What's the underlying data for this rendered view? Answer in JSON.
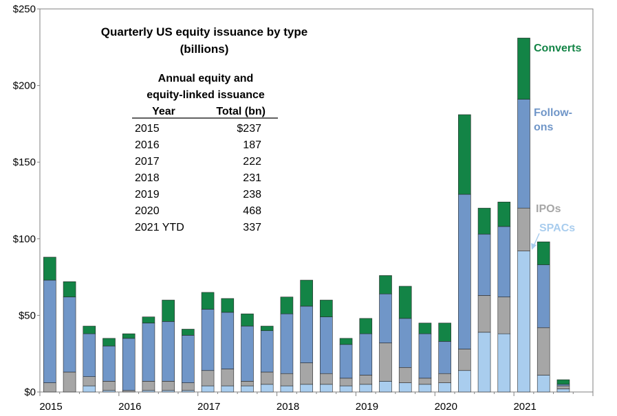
{
  "chart_data": {
    "type": "bar",
    "stacked": true,
    "title": "Quarterly US equity issuance by type",
    "subtitle": "(billions)",
    "ylim": [
      0,
      250
    ],
    "y_ticks": [
      "$0",
      "$50",
      "$100",
      "$150",
      "$200",
      "$250"
    ],
    "y_tick_values": [
      0,
      50,
      100,
      150,
      200,
      250
    ],
    "x_year_labels": [
      "2015",
      "2016",
      "2017",
      "2018",
      "2019",
      "2020",
      "2021"
    ],
    "quarters_per_year": 4,
    "categories": [
      "2015 Q1",
      "2015 Q2",
      "2015 Q3",
      "2015 Q4",
      "2016 Q1",
      "2016 Q2",
      "2016 Q3",
      "2016 Q4",
      "2017 Q1",
      "2017 Q2",
      "2017 Q3",
      "2017 Q4",
      "2018 Q1",
      "2018 Q2",
      "2018 Q3",
      "2018 Q4",
      "2019 Q1",
      "2019 Q2",
      "2019 Q3",
      "2019 Q4",
      "2020 Q1",
      "2020 Q2",
      "2020 Q3",
      "2020 Q4",
      "2021 Q1",
      "2021 Q2",
      "2021 Q3"
    ],
    "series": [
      {
        "name": "SPACs",
        "color": "#a9cdee",
        "values": [
          0,
          0,
          4,
          1,
          0,
          1,
          1,
          1,
          4,
          4,
          4,
          5,
          4,
          5,
          5,
          4,
          5,
          7,
          6,
          5,
          6,
          14,
          39,
          38,
          92,
          11,
          2
        ]
      },
      {
        "name": "IPOs",
        "color": "#a6a6a6",
        "values": [
          6,
          13,
          6,
          6,
          1,
          6,
          6,
          5,
          10,
          11,
          3,
          8,
          8,
          14,
          7,
          5,
          6,
          25,
          10,
          4,
          6,
          14,
          24,
          24,
          28,
          31,
          2
        ]
      },
      {
        "name": "Follow-ons",
        "color": "#7096c8",
        "values": [
          67,
          49,
          28,
          23,
          34,
          38,
          39,
          31,
          40,
          37,
          36,
          27,
          39,
          37,
          37,
          22,
          27,
          32,
          32,
          29,
          21,
          101,
          40,
          46,
          71,
          41,
          1
        ]
      },
      {
        "name": "Converts",
        "color": "#138446",
        "values": [
          15,
          10,
          5,
          5,
          3,
          4,
          14,
          4,
          11,
          9,
          8,
          3,
          11,
          17,
          11,
          4,
          10,
          12,
          21,
          7,
          12,
          52,
          17,
          16,
          40,
          15,
          3
        ]
      }
    ],
    "legend_labels": [
      {
        "series": "Converts",
        "lines": [
          "Converts"
        ],
        "color": "#138446"
      },
      {
        "series": "Follow-ons",
        "lines": [
          "Follow-",
          "ons"
        ],
        "color": "#7096c8"
      },
      {
        "series": "IPOs",
        "lines": [
          "IPOs"
        ],
        "color": "#a6a6a6"
      },
      {
        "series": "SPACs",
        "lines": [
          "SPACs"
        ],
        "color": "#a9cdee"
      }
    ],
    "inset_table": {
      "title_lines": [
        "Annual equity and",
        "equity-linked issuance"
      ],
      "headers": [
        "Year",
        "Total (bn)"
      ],
      "rows": [
        [
          "2015",
          "$237"
        ],
        [
          "2016",
          "187"
        ],
        [
          "2017",
          "222"
        ],
        [
          "2018",
          "231"
        ],
        [
          "2019",
          "238"
        ],
        [
          "2020",
          "468"
        ],
        [
          "2021 YTD",
          "337"
        ]
      ]
    }
  }
}
